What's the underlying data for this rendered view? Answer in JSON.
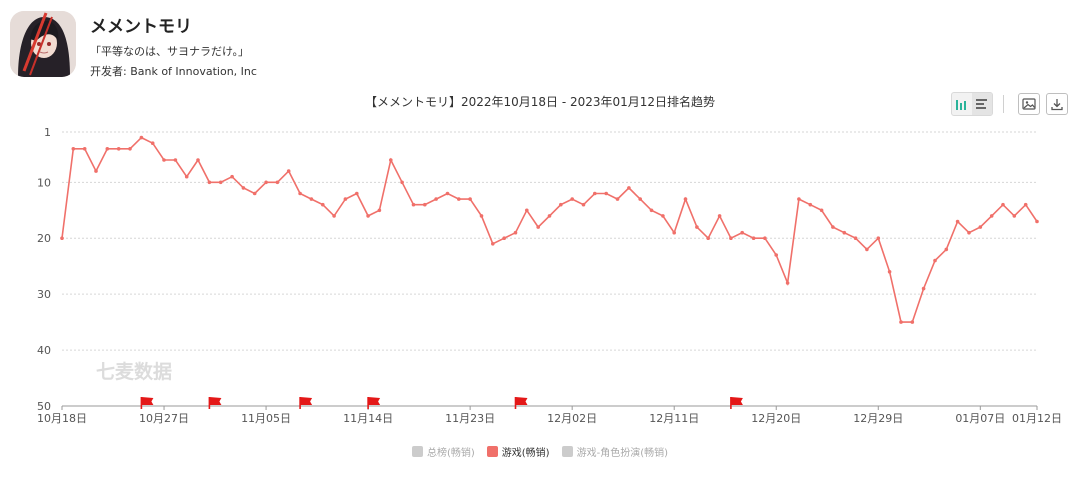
{
  "app": {
    "title": "メメントモリ",
    "subtitle": "「平等なのは、サヨナラだけ。」",
    "developer": "开发者: Bank of Innovation, Inc"
  },
  "toolbar": {
    "icons": [
      "bar-chart-icon",
      "list-icon",
      "image-icon",
      "download-icon"
    ]
  },
  "watermark": "七麦数据",
  "chart_data": {
    "type": "line",
    "title": "【メメントモリ】2022年10月18日 - 2023年01月12日排名趋势",
    "x_ticks": [
      "10月18日",
      "10月27日",
      "11月05日",
      "11月14日",
      "11月23日",
      "12月02日",
      "12月11日",
      "12月20日",
      "12月29日",
      "01月07日",
      "01月12日"
    ],
    "y_ticks": [
      1,
      10,
      20,
      30,
      40,
      50
    ],
    "ylim": [
      1,
      50
    ],
    "y_inverted": true,
    "x_start": "2022-10-18",
    "x_end": "2023-01-12",
    "series": [
      {
        "name": "游戏(畅销)",
        "color": "#f0706a",
        "active": true,
        "values": [
          20,
          4,
          4,
          8,
          4,
          4,
          4,
          2,
          3,
          6,
          6,
          9,
          6,
          10,
          10,
          9,
          11,
          12,
          10,
          10,
          8,
          12,
          13,
          14,
          16,
          13,
          12,
          16,
          15,
          6,
          10,
          14,
          14,
          13,
          12,
          13,
          13,
          16,
          21,
          20,
          19,
          15,
          18,
          16,
          14,
          13,
          14,
          12,
          12,
          13,
          11,
          13,
          15,
          16,
          19,
          13,
          18,
          20,
          16,
          20,
          19,
          20,
          20,
          23,
          28,
          13,
          14,
          15,
          18,
          19,
          20,
          22,
          20,
          26,
          35,
          35,
          29,
          24,
          22,
          17,
          19,
          18,
          16,
          14,
          16,
          14,
          17
        ]
      },
      {
        "name": "总榜(畅销)",
        "color": "#cccccc",
        "active": false,
        "values": []
      },
      {
        "name": "游戏-角色扮演(畅销)",
        "color": "#cccccc",
        "active": false,
        "values": []
      }
    ],
    "markers": [
      "2022-10-25",
      "2022-10-31",
      "2022-11-08",
      "2022-11-14",
      "2022-11-27",
      "2022-12-16"
    ],
    "grid": "horizontal-dotted",
    "legend_position": "bottom-center"
  }
}
